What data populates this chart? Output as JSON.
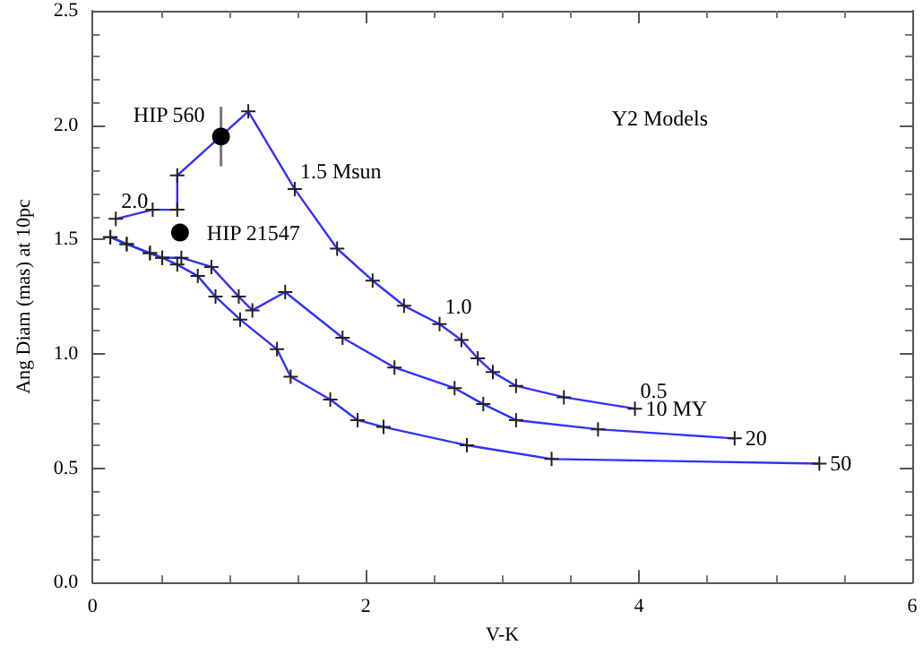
{
  "chart_data": {
    "type": "line",
    "xlabel": "V-K",
    "ylabel": "Ang Diam (mas) at 10pc",
    "xlim": [
      0,
      6
    ],
    "xticks": [
      0,
      2,
      4,
      6
    ],
    "ylim": [
      0,
      2.5
    ],
    "yticks": [
      {
        "value": 0,
        "label": "0.0"
      },
      {
        "value": 0.5,
        "label": "0.5"
      },
      {
        "value": 1,
        "label": "1.0"
      },
      {
        "value": 1.5,
        "label": "1.5"
      },
      {
        "value": 2,
        "label": "2.0"
      },
      {
        "value": 2.5,
        "label": "2.5"
      }
    ],
    "grid": false,
    "marker": "cross",
    "line_style": "solid",
    "annotations": [
      "Y2 Models",
      {
        "text": "2.0",
        "x": 0.17,
        "y": 1.59
      },
      {
        "text": "1.5 Msun",
        "x": 1.48,
        "y": 1.72
      },
      {
        "text": "1.0",
        "x": 2.54,
        "y": 1.13
      },
      {
        "text": "0.5",
        "x": 3.97,
        "y": 0.76
      }
    ],
    "series": [
      {
        "name": "10 MY",
        "color": "#3030ff",
        "x": [
          0.17,
          0.44,
          0.62,
          0.62,
          1.14,
          1.48,
          1.79,
          2.05,
          2.28,
          2.54,
          2.7,
          2.82,
          2.93,
          3.1,
          3.45,
          3.97
        ],
        "values": [
          1.59,
          1.63,
          1.63,
          1.78,
          2.06,
          1.72,
          1.46,
          1.32,
          1.21,
          1.13,
          1.06,
          0.98,
          0.92,
          0.86,
          0.81,
          0.76
        ]
      },
      {
        "name": "20",
        "color": "#3030ff",
        "x": [
          0.13,
          0.25,
          0.42,
          0.51,
          0.65,
          0.87,
          1.07,
          1.17,
          1.41,
          1.83,
          2.21,
          2.65,
          2.86,
          3.1,
          3.7,
          4.7
        ],
        "values": [
          1.51,
          1.48,
          1.44,
          1.42,
          1.42,
          1.38,
          1.25,
          1.19,
          1.27,
          1.07,
          0.94,
          0.85,
          0.78,
          0.71,
          0.67,
          0.63
        ]
      },
      {
        "name": "50",
        "color": "#3030ff",
        "x": [
          0.13,
          0.25,
          0.42,
          0.51,
          0.62,
          0.77,
          0.9,
          1.08,
          1.35,
          1.45,
          1.74,
          1.94,
          2.13,
          2.74,
          3.36,
          5.32
        ],
        "values": [
          1.51,
          1.48,
          1.44,
          1.42,
          1.39,
          1.34,
          1.25,
          1.15,
          1.02,
          0.9,
          0.8,
          0.71,
          0.68,
          0.6,
          0.54,
          0.52
        ]
      },
      {
        "name": "HIP 560",
        "type": "scatter",
        "marker": "circle",
        "color": "#000000",
        "x": [
          0.94
        ],
        "values": [
          1.95
        ],
        "errors": [
          0.13
        ]
      },
      {
        "name": "HIP 21547",
        "type": "scatter",
        "marker": "circle",
        "color": "#000000",
        "x": [
          0.64
        ],
        "values": [
          1.53
        ]
      }
    ]
  }
}
